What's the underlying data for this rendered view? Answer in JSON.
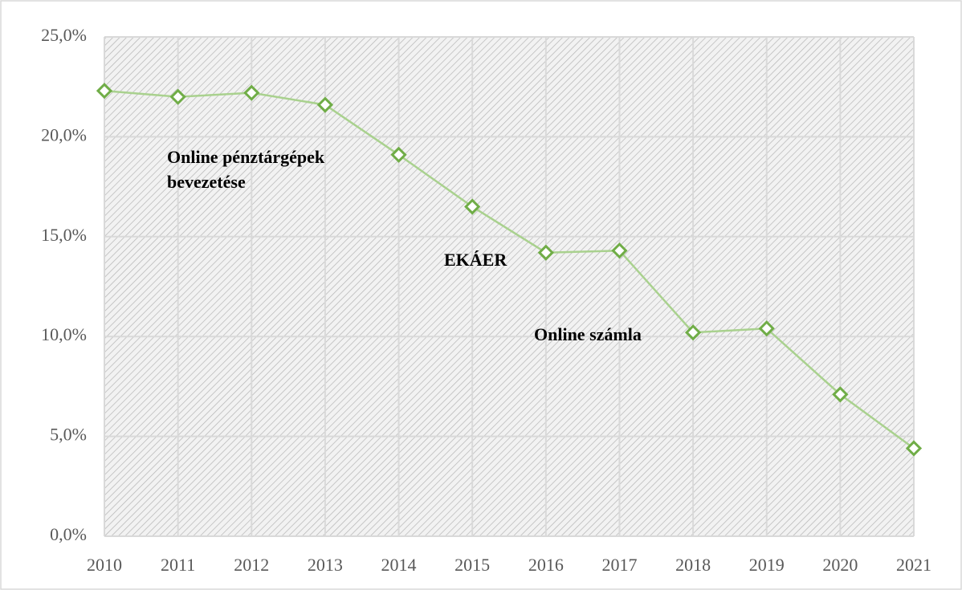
{
  "chart_data": {
    "type": "line",
    "categories": [
      "2010",
      "2011",
      "2012",
      "2013",
      "2014",
      "2015",
      "2016",
      "2017",
      "2018",
      "2019",
      "2020",
      "2021"
    ],
    "series": [
      {
        "name": "Rate",
        "color": "#70ad47",
        "values": [
          22.3,
          22.0,
          22.2,
          21.6,
          19.1,
          16.5,
          14.2,
          14.3,
          10.2,
          10.4,
          7.1,
          4.4
        ]
      }
    ],
    "ylim": [
      0,
      25
    ],
    "yticks": [
      {
        "value": 0,
        "label": "0,0%"
      },
      {
        "value": 5,
        "label": "5,0%"
      },
      {
        "value": 10,
        "label": "10,0%"
      },
      {
        "value": 15,
        "label": "15,0%"
      },
      {
        "value": 20,
        "label": "20,0%"
      },
      {
        "value": 25,
        "label": "25,0%"
      }
    ],
    "grid": true,
    "annotations": [
      {
        "lines": [
          "Online pénztárgépek",
          "bevezetése"
        ]
      },
      {
        "lines": [
          "EKÁER"
        ]
      },
      {
        "lines": [
          "Online számla"
        ]
      }
    ]
  }
}
